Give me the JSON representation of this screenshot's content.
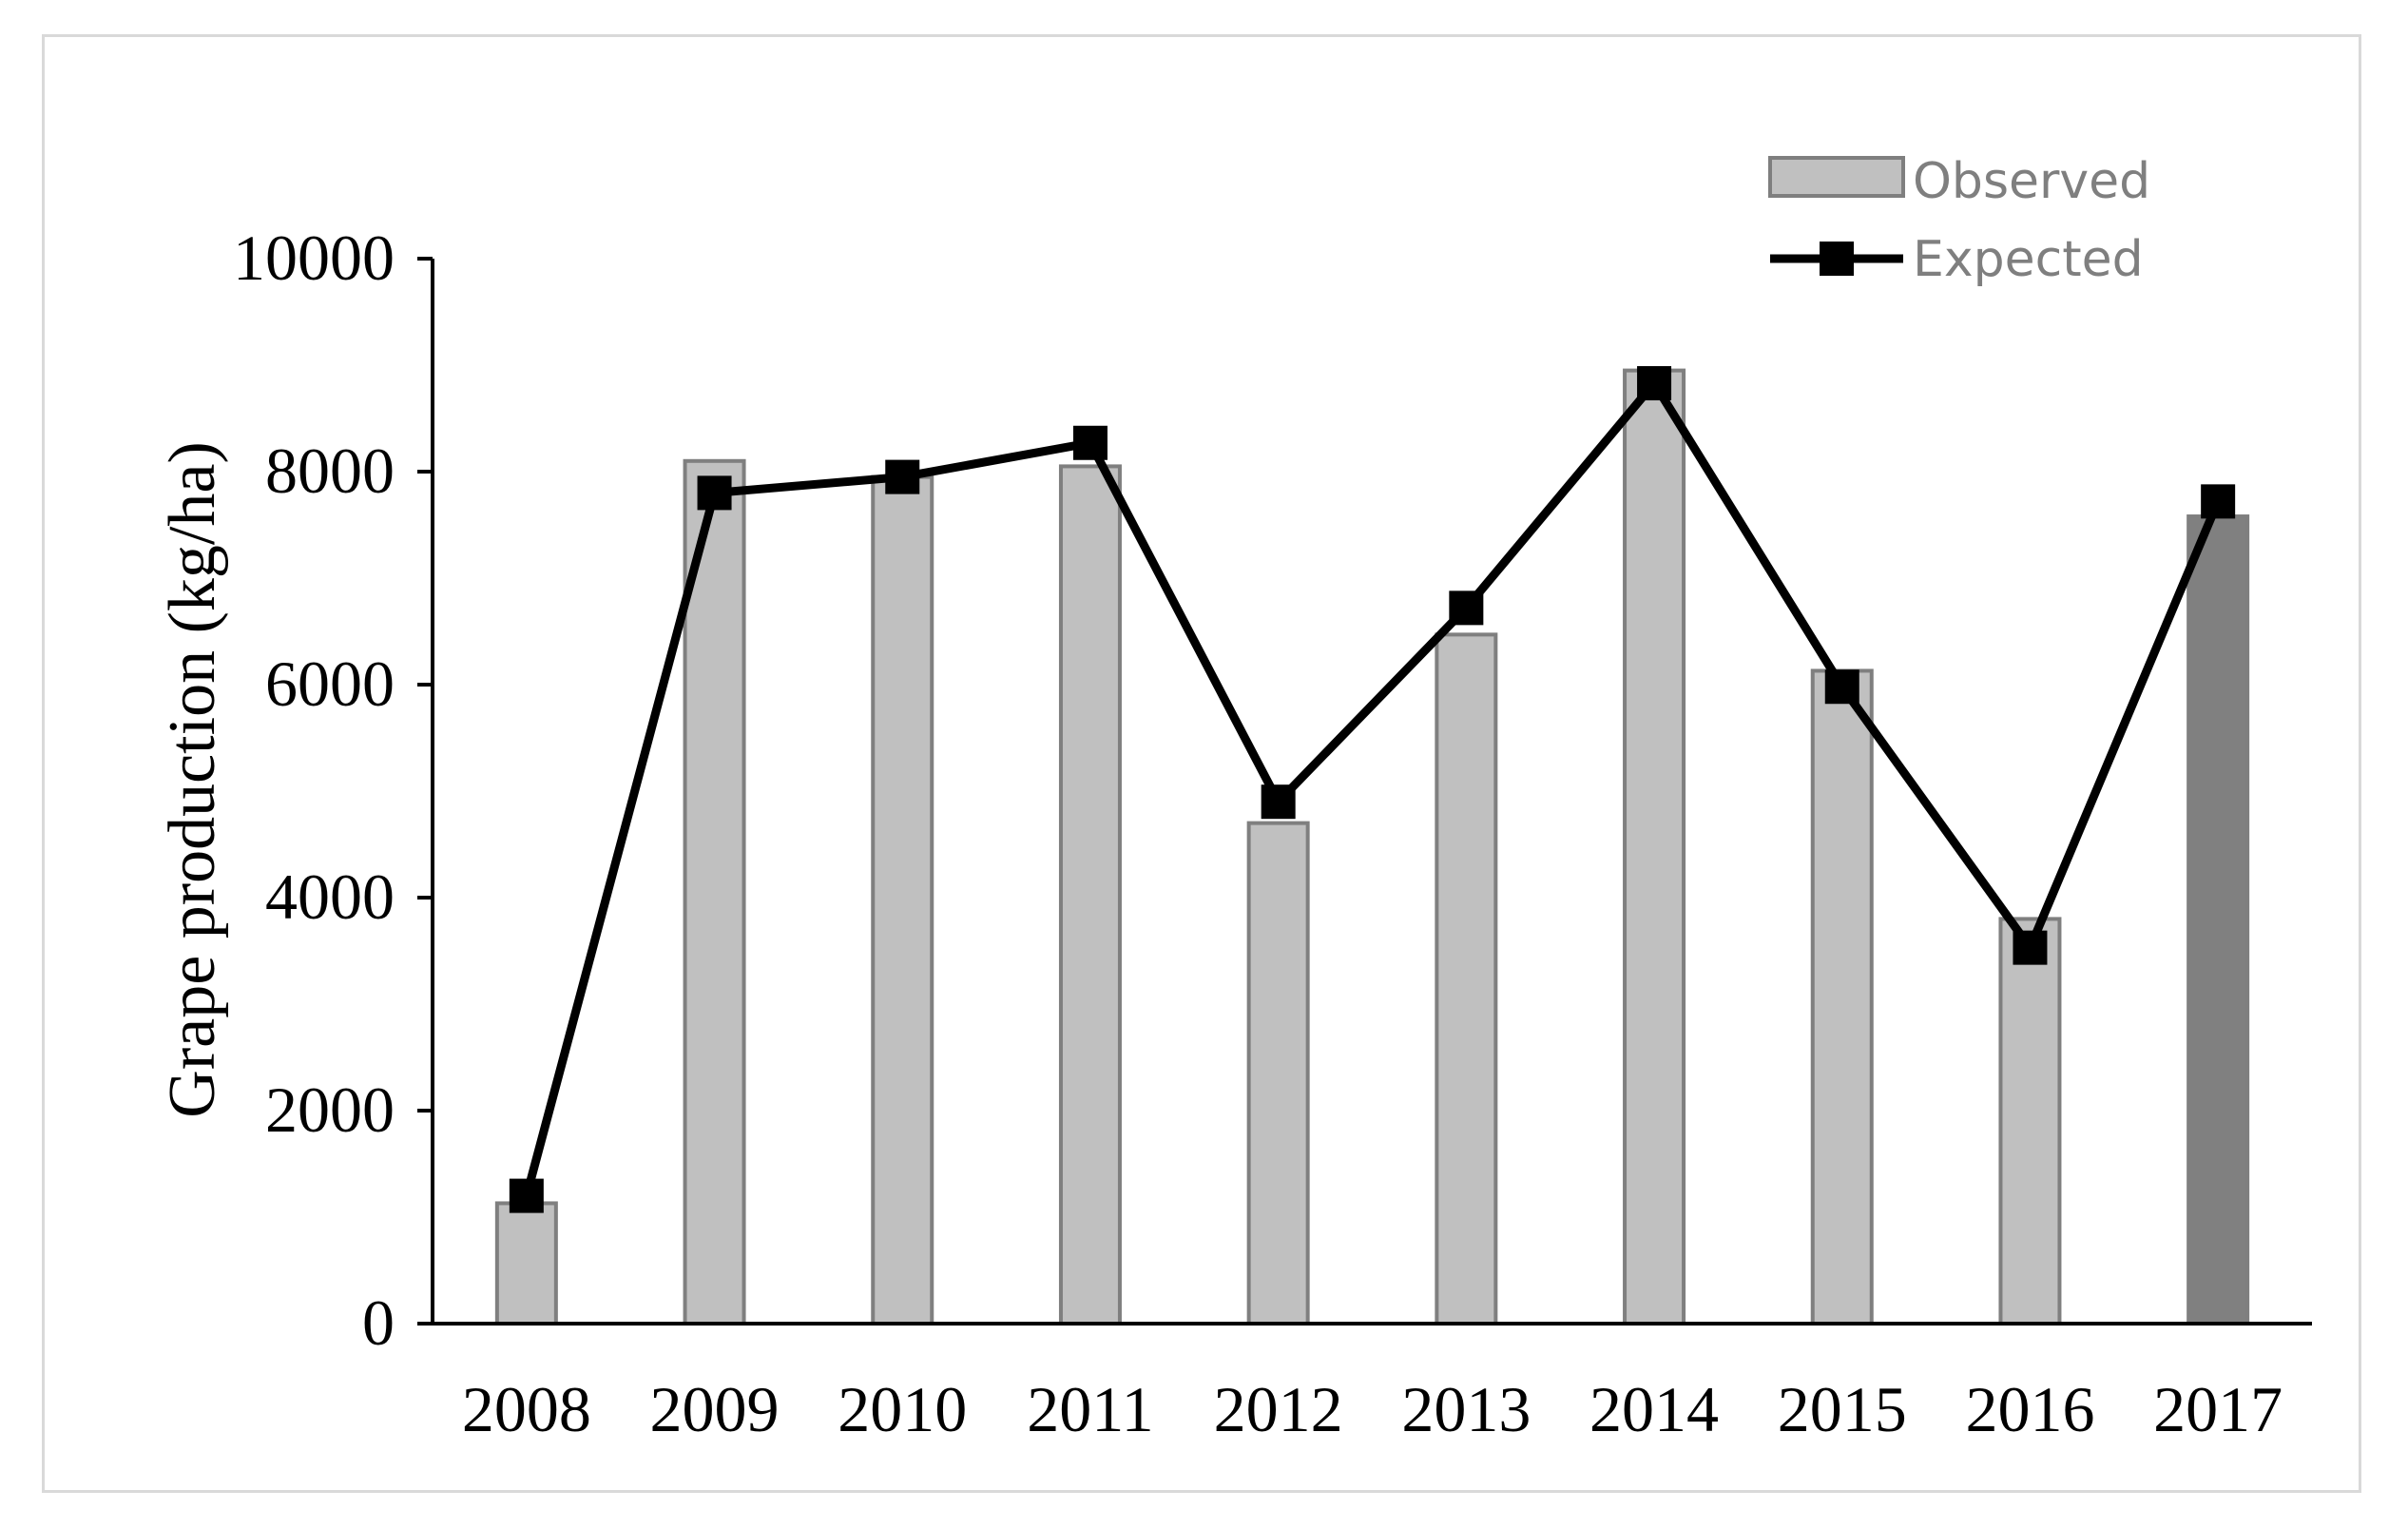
{
  "chart_data": {
    "type": "bar",
    "categories": [
      "2008",
      "2009",
      "2010",
      "2011",
      "2012",
      "2013",
      "2014",
      "2015",
      "2016",
      "2017"
    ],
    "series": [
      {
        "name": "Observed",
        "type": "bar",
        "values": [
          1130,
          8100,
          7950,
          8050,
          4700,
          6470,
          8950,
          6130,
          3800,
          7580
        ],
        "color": "#c0c0c0",
        "edge_color": "#7f7f7f",
        "highlight_last_color": "#808080"
      },
      {
        "name": "Expected",
        "type": "line",
        "values": [
          1200,
          7800,
          7950,
          8270,
          4900,
          6720,
          8830,
          5980,
          3530,
          7720
        ],
        "color": "#000000",
        "marker": "square"
      }
    ],
    "ylabel": "Grape production  (kg/ha)",
    "xlabel": "",
    "ylim": [
      0,
      10000
    ],
    "yticks": [
      "0",
      "2000",
      "4000",
      "6000",
      "8000",
      "10000"
    ],
    "grid": false,
    "legend_position": "top-right"
  }
}
